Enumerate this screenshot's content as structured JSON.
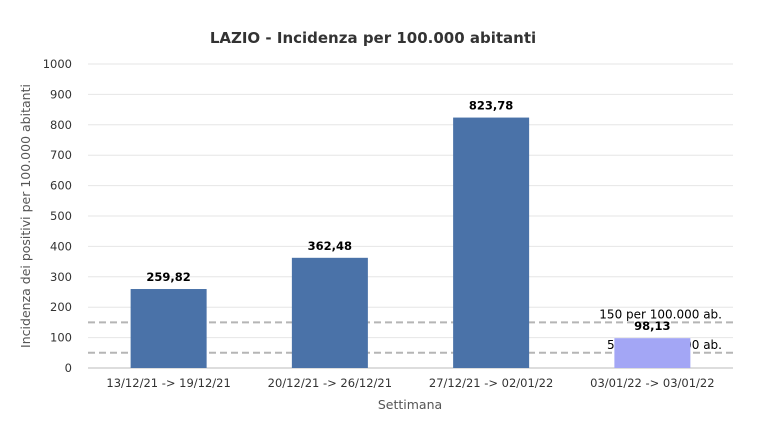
{
  "chart_data": {
    "type": "bar",
    "title": "LAZIO - Incidenza per 100.000 abitanti",
    "xlabel": "Settimana",
    "ylabel": "Incidenza dei positivi per 100.000 abitanti",
    "ylim": [
      0,
      1000
    ],
    "yticks": [
      "0",
      "100",
      "200",
      "300",
      "400",
      "500",
      "600",
      "700",
      "800",
      "900",
      "1000"
    ],
    "categories": [
      "13/12/21 -> 19/12/21",
      "20/12/21 -> 26/12/21",
      "27/12/21 -> 02/01/22",
      "03/01/22 -> 03/01/22"
    ],
    "values": [
      259.82,
      362.48,
      823.78,
      98.13
    ],
    "value_labels": [
      "259,82",
      "362,48",
      "823,78",
      "98,13"
    ],
    "bar_colors": [
      "#4a72a8",
      "#4a72a8",
      "#4a72a8",
      "#a3a6f5"
    ],
    "grid": true,
    "reference_lines": [
      {
        "value": 150,
        "label": "150 per 100.000 ab."
      },
      {
        "value": 50,
        "label": "50 per 100.000 ab."
      }
    ]
  }
}
